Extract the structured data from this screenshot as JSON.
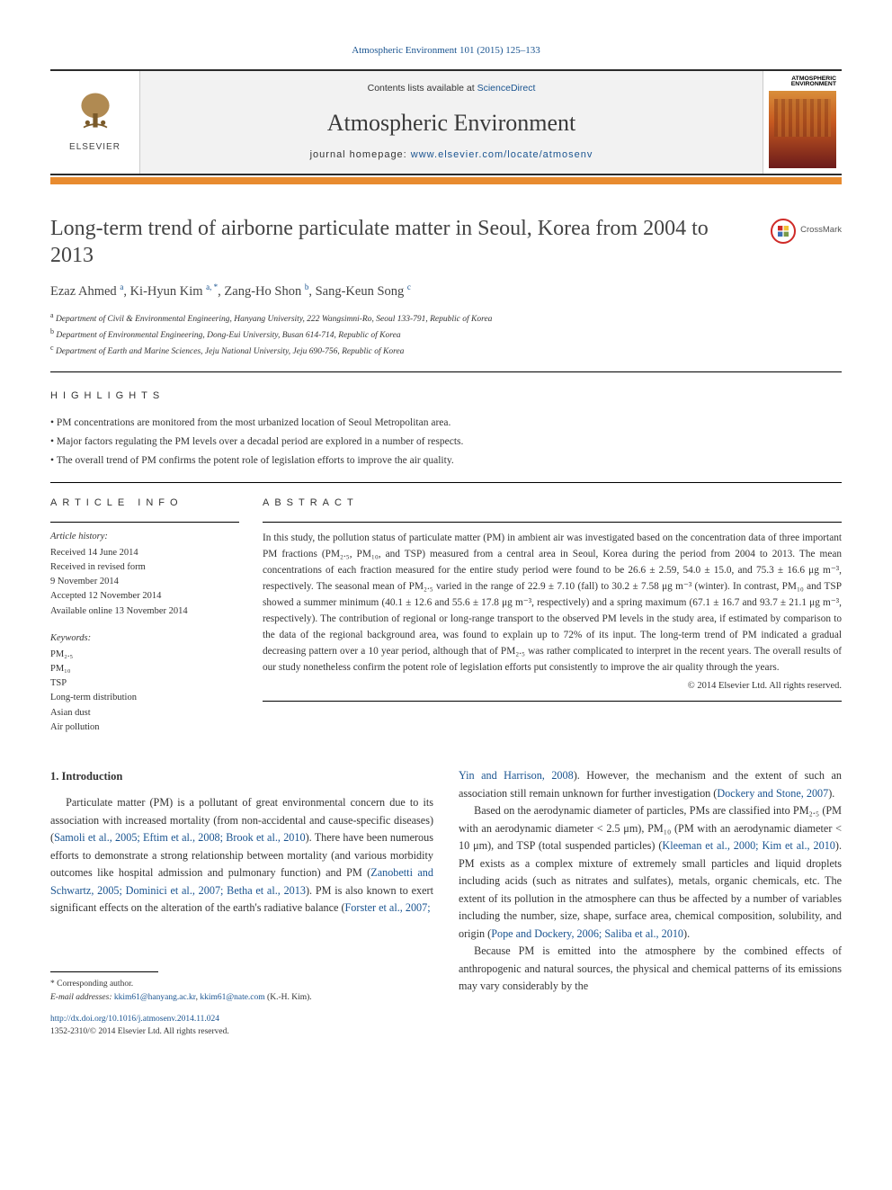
{
  "citation_line": "Atmospheric Environment 101 (2015) 125–133",
  "contents_prefix": "Contents lists available at ",
  "contents_link": "ScienceDirect",
  "journal_name": "Atmospheric Environment",
  "journal_home_prefix": "journal homepage: ",
  "journal_home_url": "www.elsevier.com/locate/atmosenv",
  "elsevier_word": "ELSEVIER",
  "cover_title": "ATMOSPHERIC ENVIRONMENT",
  "article_title": "Long-term trend of airborne particulate matter in Seoul, Korea from 2004 to 2013",
  "crossmark_label": "CrossMark",
  "authors_html": "Ezaz Ahmed <sup class=\"sup\">a</sup>, Ki-Hyun Kim <sup class=\"sup\">a, *</sup>, Zang-Ho Shon <sup class=\"sup\">b</sup>, Sang-Keun Song <sup class=\"sup\">c</sup>",
  "affiliations": {
    "a": "Department of Civil & Environmental Engineering, Hanyang University, 222 Wangsimni-Ro, Seoul 133-791, Republic of Korea",
    "b": "Department of Environmental Engineering, Dong-Eui University, Busan 614-714, Republic of Korea",
    "c": "Department of Earth and Marine Sciences, Jeju National University, Jeju 690-756, Republic of Korea"
  },
  "highlights_label": "HIGHLIGHTS",
  "highlights": [
    "PM concentrations are monitored from the most urbanized location of Seoul Metropolitan area.",
    "Major factors regulating the PM levels over a decadal period are explored in a number of respects.",
    "The overall trend of PM confirms the potent role of legislation efforts to improve the air quality."
  ],
  "article_info_label": "ARTICLE INFO",
  "abstract_label": "ABSTRACT",
  "history_header": "Article history:",
  "history": [
    "Received 14 June 2014",
    "Received in revised form",
    "9 November 2014",
    "Accepted 12 November 2014",
    "Available online 13 November 2014"
  ],
  "keywords_header": "Keywords:",
  "keywords": [
    "PM₂.₅",
    "PM₁₀",
    "TSP",
    "Long-term distribution",
    "Asian dust",
    "Air pollution"
  ],
  "abstract": "In this study, the pollution status of particulate matter (PM) in ambient air was investigated based on the concentration data of three important PM fractions (PM₂.₅, PM₁₀, and TSP) measured from a central area in Seoul, Korea during the period from 2004 to 2013. The mean concentrations of each fraction measured for the entire study period were found to be 26.6 ± 2.59, 54.0 ± 15.0, and 75.3 ± 16.6 μg m⁻³, respectively. The seasonal mean of PM₂.₅ varied in the range of 22.9 ± 7.10 (fall) to 30.2 ± 7.58 μg m⁻³ (winter). In contrast, PM₁₀ and TSP showed a summer minimum (40.1 ± 12.6 and 55.6 ± 17.8 μg m⁻³, respectively) and a spring maximum (67.1 ± 16.7 and 93.7 ± 21.1 μg m⁻³, respectively). The contribution of regional or long-range transport to the observed PM levels in the study area, if estimated by comparison to the data of the regional background area, was found to explain up to 72% of its input. The long-term trend of PM indicated a gradual decreasing pattern over a 10 year period, although that of PM₂.₅ was rather complicated to interpret in the recent years. The overall results of our study nonetheless confirm the potent role of legislation efforts put consistently to improve the air quality through the years.",
  "copyright": "© 2014 Elsevier Ltd. All rights reserved.",
  "intro_heading": "1. Introduction",
  "para_left_1_pre": "Particulate matter (PM) is a pollutant of great environmental concern due to its association with increased mortality (from non-accidental and cause-specific diseases) (",
  "ref1": "Samoli et al., 2005; Eftim et al., 2008; Brook et al., 2010",
  "para_left_1_mid": "). There have been numerous efforts to demonstrate a strong relationship between mortality (and various morbidity outcomes like hospital admission and pulmonary function) and PM (",
  "ref2": "Zanobetti and Schwartz, 2005; Dominici et al., 2007; Betha et al., 2013",
  "para_left_1_mid2": "). PM is also known to exert significant effects on the alteration of the earth's radiative balance (",
  "ref3": "Forster et al., 2007;",
  "ref3b": "Yin and Harrison, 2008",
  "para_right_0_post": "). However, the mechanism and the extent of such an association still remain unknown for further investigation (",
  "ref4": "Dockery and Stone, 2007",
  "para_right_0_end": ").",
  "para_right_1_pre": "Based on the aerodynamic diameter of particles, PMs are classified into PM₂.₅ (PM with an aerodynamic diameter < 2.5 μm), PM₁₀ (PM with an aerodynamic diameter < 10 μm), and TSP (total suspended particles) (",
  "ref5": "Kleeman et al., 2000; Kim et al., 2010",
  "para_right_1_mid": "). PM exists as a complex mixture of extremely small particles and liquid droplets including acids (such as nitrates and sulfates), metals, organic chemicals, etc. The extent of its pollution in the atmosphere can thus be affected by a number of variables including the number, size, shape, surface area, chemical composition, solubility, and origin (",
  "ref6": "Pope and Dockery, 2006; Saliba et al., 2010",
  "para_right_1_end": ").",
  "para_right_2": "Because PM is emitted into the atmosphere by the combined effects of anthropogenic and natural sources, the physical and chemical patterns of its emissions may vary considerably by the",
  "corr_label": "* Corresponding author.",
  "email_label": "E-mail addresses: ",
  "email1": "kkim61@hanyang.ac.kr",
  "email_sep": ", ",
  "email2": "kkim61@nate.com",
  "email_post": " (K.-H. Kim).",
  "doi": "http://dx.doi.org/10.1016/j.atmosenv.2014.11.024",
  "issn_line": "1352-2310/© 2014 Elsevier Ltd. All rights reserved.",
  "colors": {
    "orange_bar": "#e88b2f",
    "link": "#1a5490",
    "crossmark_red": "#cf2a27",
    "crossmark_yellow": "#f2c037",
    "crossmark_blue": "#3a6fb7"
  }
}
